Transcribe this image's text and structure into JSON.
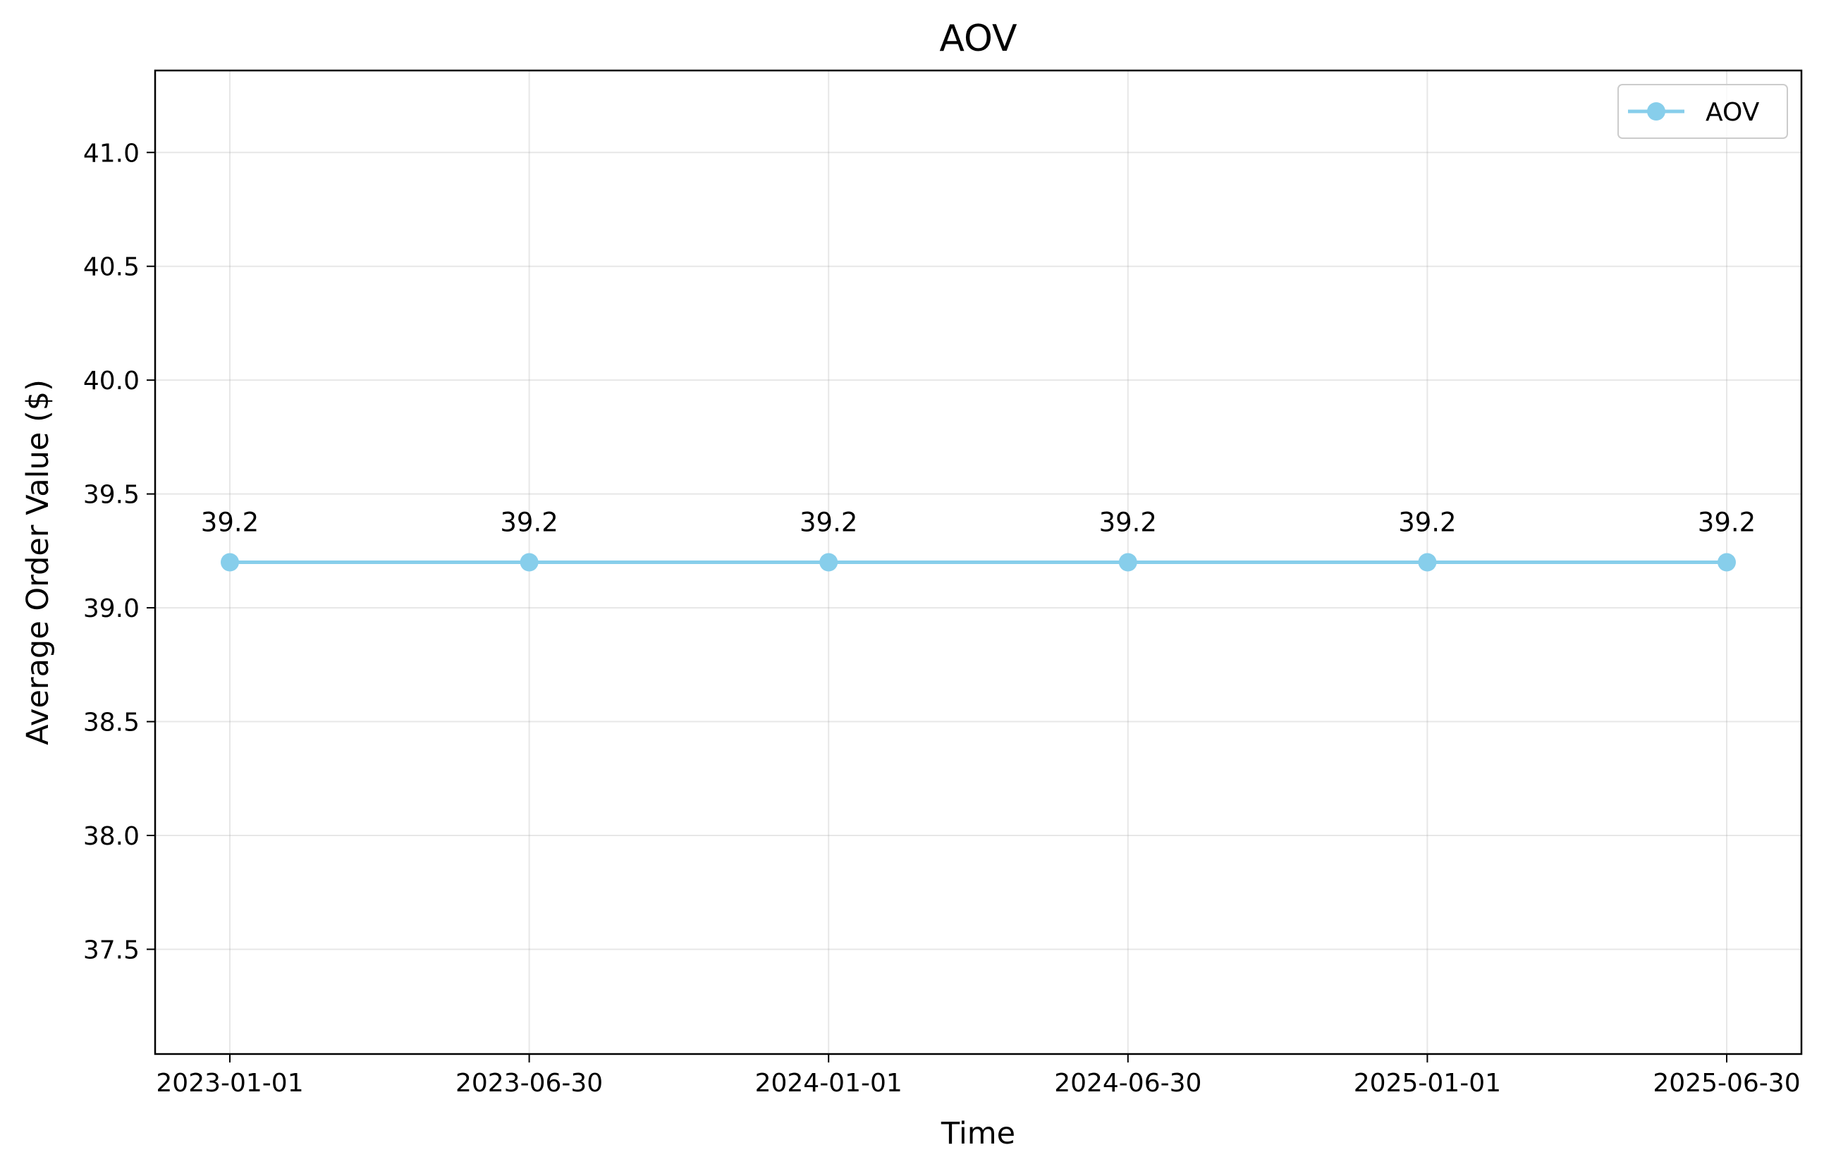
{
  "chart_data": {
    "type": "line",
    "title": "AOV",
    "xlabel": "Time",
    "ylabel": "Average Order Value ($)",
    "x": [
      "2023-01-01",
      "2023-06-30",
      "2024-01-01",
      "2024-06-30",
      "2025-01-01",
      "2025-06-30"
    ],
    "series": [
      {
        "name": "AOV",
        "color": "#87ceeb",
        "values": [
          39.2,
          39.2,
          39.2,
          39.2,
          39.2,
          39.2
        ],
        "data_labels": [
          "39.2",
          "39.2",
          "39.2",
          "39.2",
          "39.2",
          "39.2"
        ]
      }
    ],
    "ylim": [
      37.04,
      41.36
    ],
    "yticks": [
      37.5,
      38.0,
      38.5,
      39.0,
      39.5,
      40.0,
      40.5,
      41.0
    ],
    "ytick_labels": [
      "37.5",
      "38.0",
      "38.5",
      "39.0",
      "39.5",
      "40.0",
      "40.5",
      "41.0"
    ],
    "xtick_labels": [
      "2023-01-01",
      "2023-06-30",
      "2024-01-01",
      "2024-06-30",
      "2025-01-01",
      "2025-06-30"
    ],
    "grid": true,
    "legend": "top-right"
  }
}
